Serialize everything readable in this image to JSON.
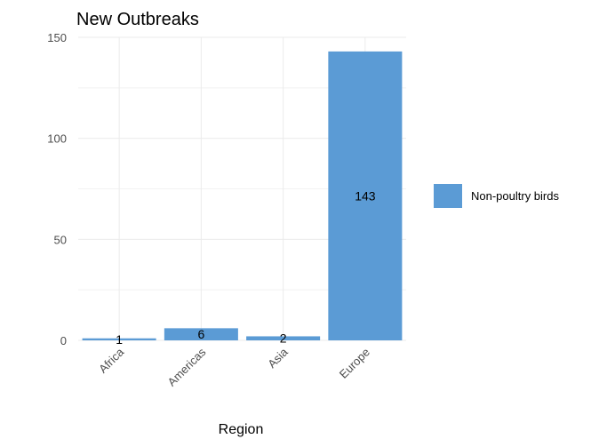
{
  "chart_data": {
    "type": "bar",
    "title": "New Outbreaks",
    "xlabel": "Region",
    "ylabel": "",
    "categories": [
      "Africa",
      "Americas",
      "Asia",
      "Europe"
    ],
    "series": [
      {
        "name": "Non-poultry birds",
        "values": [
          1,
          6,
          2,
          143
        ],
        "color": "#5b9bd5"
      }
    ],
    "data_labels": [
      "1",
      "6",
      "2",
      "143"
    ],
    "ylim": [
      0,
      150
    ],
    "yticks": [
      0,
      50,
      100,
      150
    ],
    "grid": true,
    "legend_position": "right"
  }
}
